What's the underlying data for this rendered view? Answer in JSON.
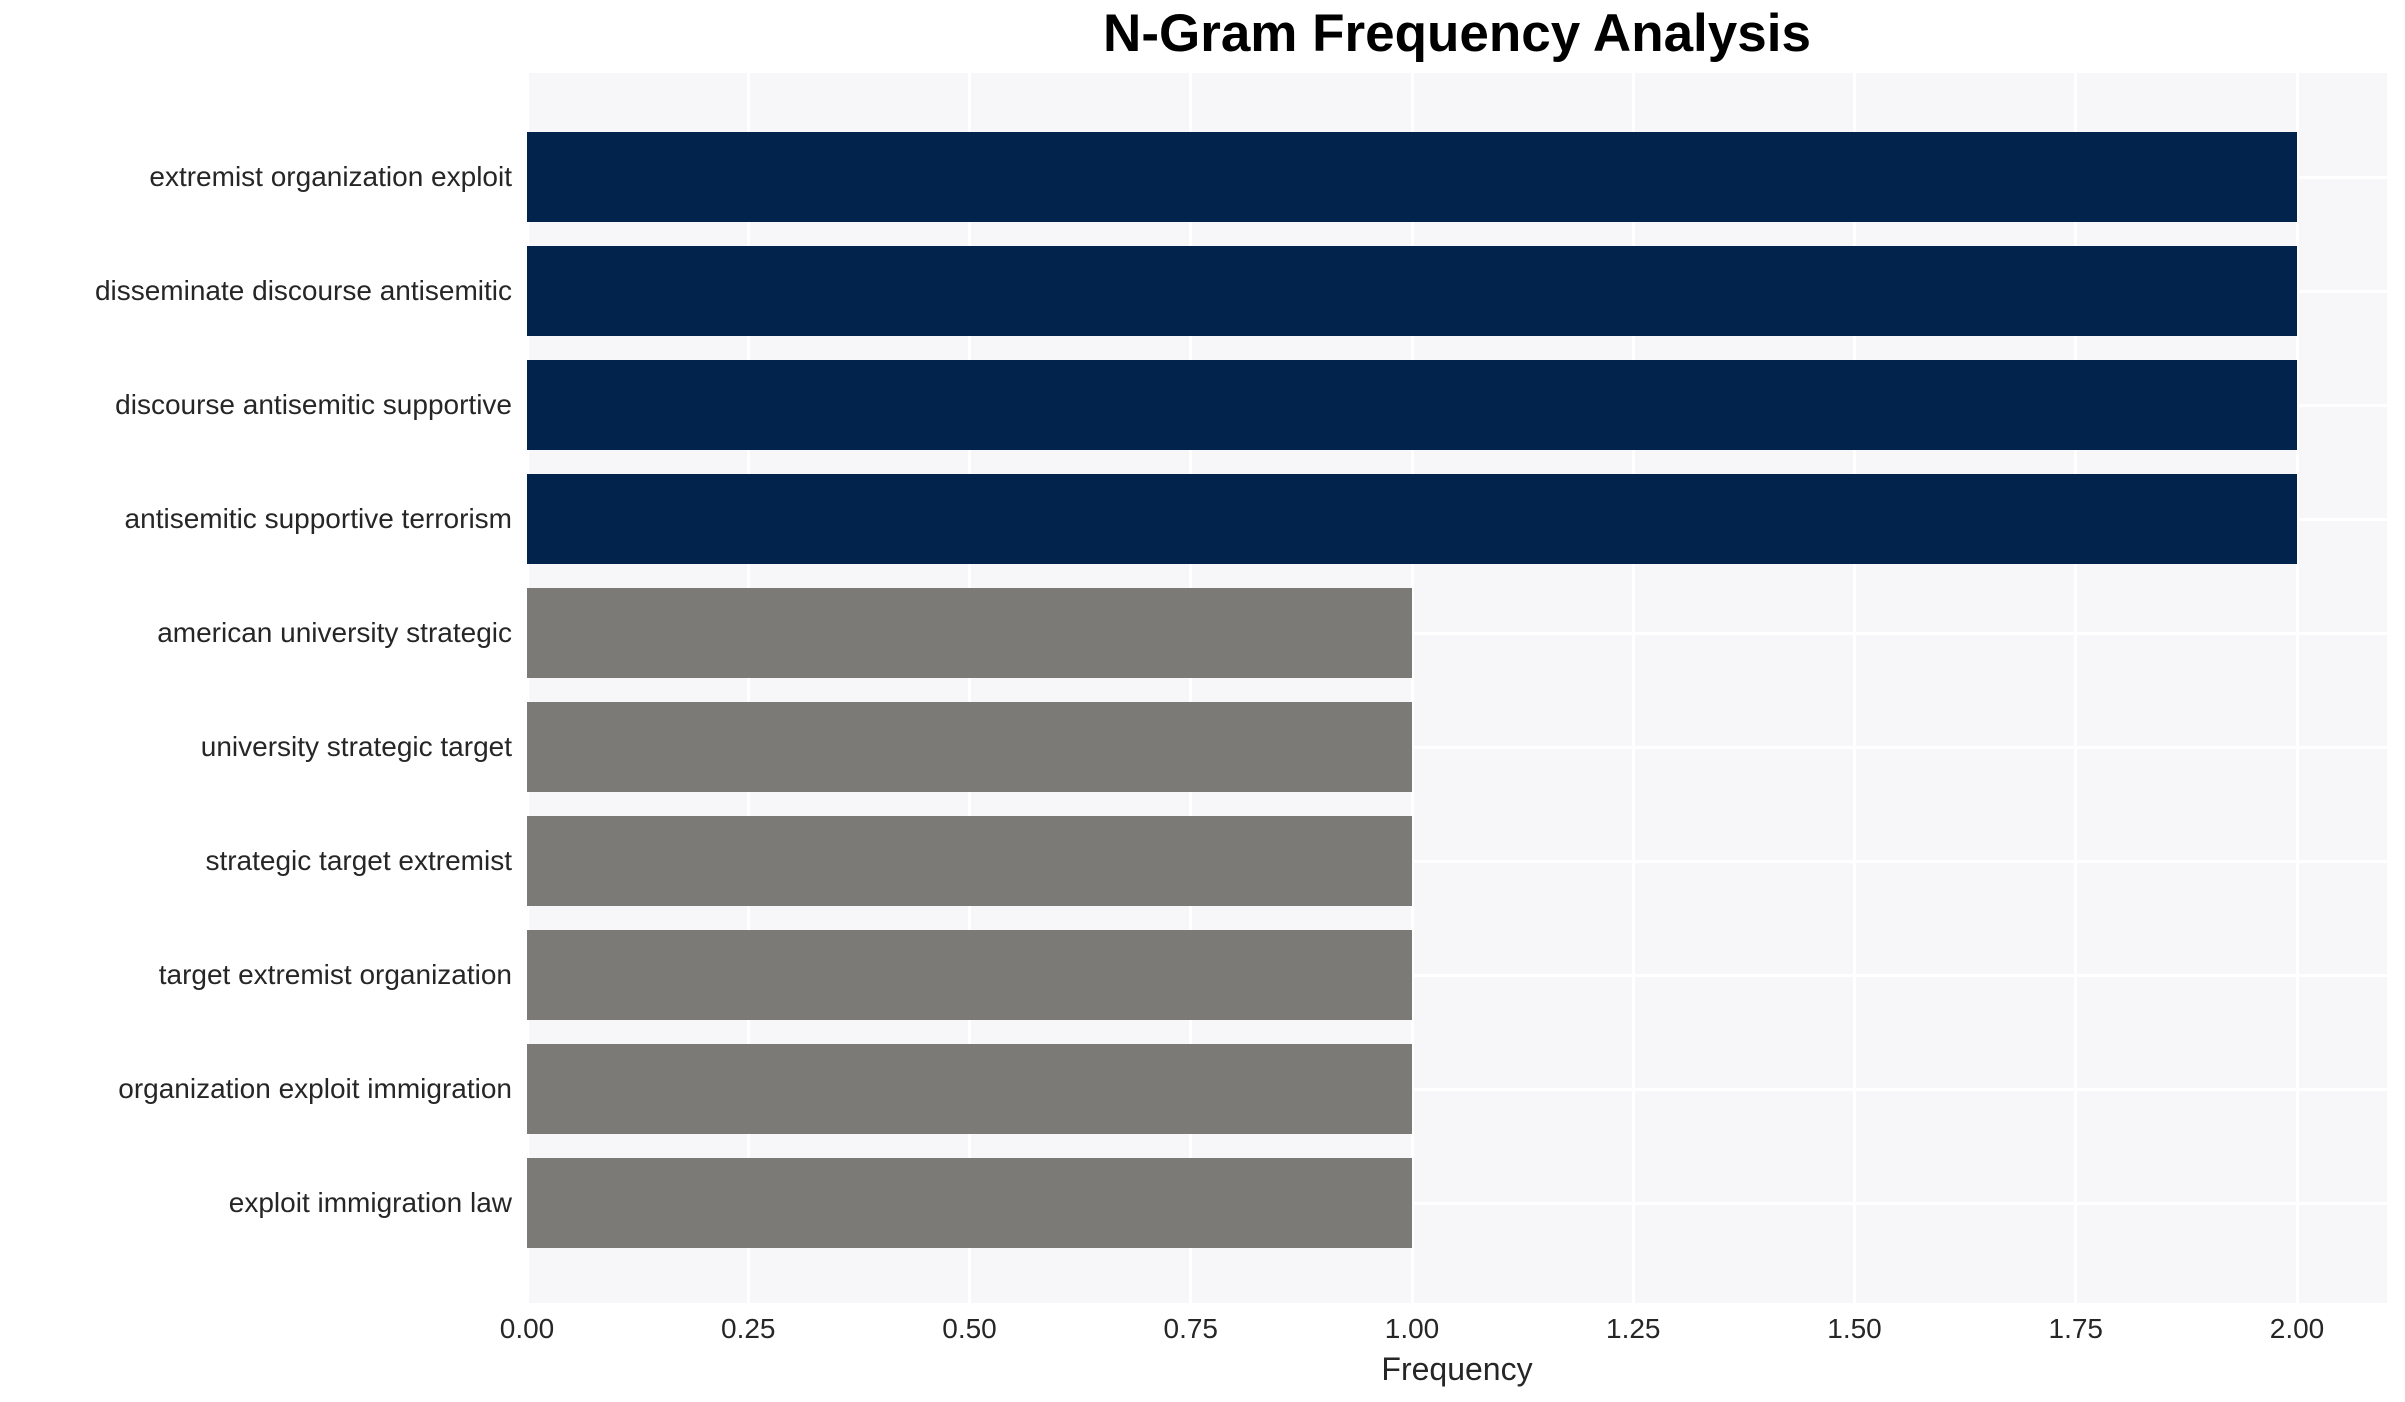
{
  "chart_data": {
    "type": "bar",
    "orientation": "horizontal",
    "title": "N-Gram Frequency Analysis",
    "xlabel": "Frequency",
    "ylabel": "",
    "categories": [
      "extremist organization exploit",
      "disseminate discourse antisemitic",
      "discourse antisemitic supportive",
      "antisemitic supportive terrorism",
      "american university strategic",
      "university strategic target",
      "strategic target extremist",
      "target extremist organization",
      "organization exploit immigration",
      "exploit immigration law"
    ],
    "values": [
      2,
      2,
      2,
      2,
      1,
      1,
      1,
      1,
      1,
      1
    ],
    "bar_colors": [
      "#02244C",
      "#02244C",
      "#02244C",
      "#02244C",
      "#7C7A76",
      "#7C7A76",
      "#7C7A76",
      "#7C7A76",
      "#7C7A76",
      "#7C7A76"
    ],
    "xlim": [
      0,
      2.1
    ],
    "xticks": [
      {
        "value": 0.0,
        "label": "0.00"
      },
      {
        "value": 0.25,
        "label": "0.25"
      },
      {
        "value": 0.5,
        "label": "0.50"
      },
      {
        "value": 0.75,
        "label": "0.75"
      },
      {
        "value": 1.0,
        "label": "1.00"
      },
      {
        "value": 1.25,
        "label": "1.25"
      },
      {
        "value": 1.5,
        "label": "1.50"
      },
      {
        "value": 1.75,
        "label": "1.75"
      },
      {
        "value": 2.0,
        "label": "2.00"
      }
    ],
    "grid": true,
    "legend": false,
    "plot_bg": "#F7F7F9",
    "gridline_color": "#FFFFFF",
    "text_color": "#262626",
    "title_color": "#000000"
  }
}
